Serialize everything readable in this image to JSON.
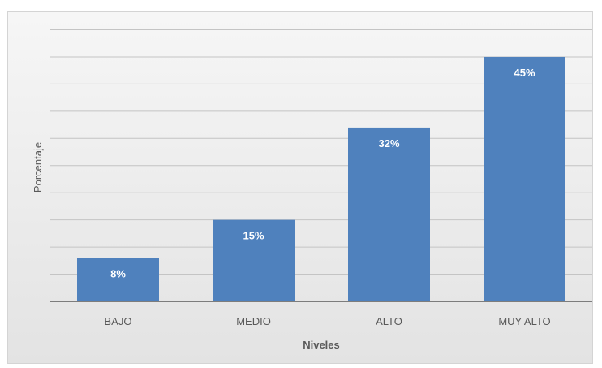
{
  "chart_data": {
    "type": "bar",
    "categories": [
      "BAJO",
      "MEDIO",
      "ALTO",
      "MUY ALTO"
    ],
    "values": [
      8,
      15,
      32,
      45
    ],
    "data_labels": [
      "8%",
      "15%",
      "32%",
      "45%"
    ],
    "xlabel": "Niveles",
    "ylabel": "Porcentaje",
    "ylim": [
      0,
      50
    ],
    "grid": true,
    "bar_color": "#4f81bd"
  }
}
